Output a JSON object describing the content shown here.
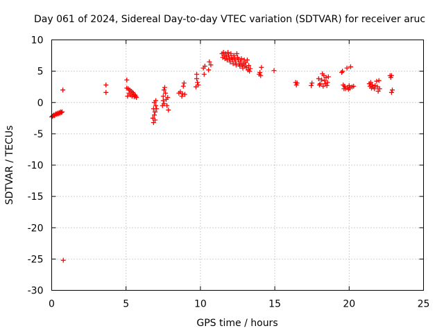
{
  "chart_data": {
    "type": "scatter",
    "title": "Day 061 of 2024, Sidereal Day-to-day VTEC variation (SDTVAR) for receiver aruc",
    "xlabel": "GPS time / hours",
    "ylabel": "SDTVAR / TECUs",
    "xlim": [
      0,
      25
    ],
    "ylim": [
      -30,
      10
    ],
    "xticks": [
      0,
      5,
      10,
      15,
      20,
      25
    ],
    "yticks": [
      -30,
      -25,
      -20,
      -15,
      -10,
      -5,
      0,
      5,
      10
    ],
    "grid": true,
    "marker": "plus",
    "color": "#ff0000",
    "series": [
      {
        "name": "SDTVAR",
        "points": [
          [
            0.0,
            -2.3
          ],
          [
            0.05,
            -2.2
          ],
          [
            0.1,
            -2.1
          ],
          [
            0.15,
            -2.0
          ],
          [
            0.2,
            -2.1
          ],
          [
            0.25,
            -1.9
          ],
          [
            0.3,
            -1.8
          ],
          [
            0.35,
            -1.9
          ],
          [
            0.4,
            -1.7
          ],
          [
            0.45,
            -1.8
          ],
          [
            0.5,
            -1.6
          ],
          [
            0.55,
            -1.7
          ],
          [
            0.6,
            -1.5
          ],
          [
            0.65,
            -1.6
          ],
          [
            0.7,
            -1.5
          ],
          [
            0.75,
            2.0
          ],
          [
            0.78,
            -25.2
          ],
          [
            3.65,
            2.8
          ],
          [
            3.65,
            1.6
          ],
          [
            5.05,
            3.6
          ],
          [
            5.05,
            2.3
          ],
          [
            5.1,
            1.0
          ],
          [
            5.15,
            2.2
          ],
          [
            5.2,
            1.5
          ],
          [
            5.25,
            2.0
          ],
          [
            5.3,
            1.2
          ],
          [
            5.35,
            1.8
          ],
          [
            5.4,
            1.0
          ],
          [
            5.45,
            1.6
          ],
          [
            5.5,
            1.4
          ],
          [
            5.55,
            0.9
          ],
          [
            5.6,
            1.2
          ],
          [
            5.65,
            1.0
          ],
          [
            5.7,
            0.8
          ],
          [
            6.8,
            -2.5
          ],
          [
            6.85,
            -3.2
          ],
          [
            6.85,
            -1.0
          ],
          [
            6.9,
            -2.0
          ],
          [
            6.9,
            0.0
          ],
          [
            6.95,
            -1.5
          ],
          [
            6.95,
            -2.8
          ],
          [
            7.0,
            -0.5
          ],
          [
            7.0,
            0.3
          ],
          [
            7.05,
            -1.0
          ],
          [
            7.45,
            -0.5
          ],
          [
            7.5,
            0.3
          ],
          [
            7.5,
            1.0
          ],
          [
            7.55,
            2.0
          ],
          [
            7.55,
            -0.2
          ],
          [
            7.6,
            2.4
          ],
          [
            7.65,
            1.5
          ],
          [
            7.7,
            0.5
          ],
          [
            7.75,
            -0.5
          ],
          [
            7.8,
            0.8
          ],
          [
            7.85,
            -1.2
          ],
          [
            8.55,
            1.5
          ],
          [
            8.65,
            1.7
          ],
          [
            8.75,
            1.0
          ],
          [
            8.8,
            1.4
          ],
          [
            8.85,
            2.6
          ],
          [
            8.9,
            3.1
          ],
          [
            8.95,
            1.3
          ],
          [
            9.7,
            2.5
          ],
          [
            9.75,
            3.8
          ],
          [
            9.75,
            4.5
          ],
          [
            9.8,
            3.2
          ],
          [
            9.85,
            2.8
          ],
          [
            10.2,
            5.5
          ],
          [
            10.25,
            4.5
          ],
          [
            10.3,
            5.8
          ],
          [
            10.55,
            5.2
          ],
          [
            10.6,
            6.5
          ],
          [
            10.7,
            6.0
          ],
          [
            11.45,
            7.8
          ],
          [
            11.5,
            7.2
          ],
          [
            11.55,
            8.0
          ],
          [
            11.6,
            7.5
          ],
          [
            11.65,
            7.0
          ],
          [
            11.7,
            7.8
          ],
          [
            11.75,
            7.3
          ],
          [
            11.8,
            6.8
          ],
          [
            11.85,
            8.0
          ],
          [
            11.9,
            7.5
          ],
          [
            11.95,
            7.0
          ],
          [
            12.0,
            6.5
          ],
          [
            12.05,
            7.8
          ],
          [
            12.1,
            7.2
          ],
          [
            12.15,
            6.8
          ],
          [
            12.2,
            6.2
          ],
          [
            12.25,
            7.5
          ],
          [
            12.3,
            7.0
          ],
          [
            12.35,
            6.5
          ],
          [
            12.4,
            6.0
          ],
          [
            12.45,
            7.8
          ],
          [
            12.5,
            7.2
          ],
          [
            12.55,
            6.8
          ],
          [
            12.6,
            6.2
          ],
          [
            12.65,
            5.8
          ],
          [
            12.7,
            6.5
          ],
          [
            12.75,
            7.0
          ],
          [
            12.8,
            6.0
          ],
          [
            12.85,
            5.5
          ],
          [
            12.9,
            6.2
          ],
          [
            12.95,
            6.8
          ],
          [
            13.0,
            5.8
          ],
          [
            13.05,
            6.4
          ],
          [
            13.1,
            5.6
          ],
          [
            13.15,
            6.8
          ],
          [
            13.2,
            5.2
          ],
          [
            13.25,
            5.9
          ],
          [
            13.3,
            5.0
          ],
          [
            13.35,
            5.4
          ],
          [
            13.95,
            4.5
          ],
          [
            14.0,
            4.8
          ],
          [
            14.05,
            4.3
          ],
          [
            14.1,
            5.6
          ],
          [
            14.95,
            5.1
          ],
          [
            16.4,
            3.2
          ],
          [
            16.45,
            2.8
          ],
          [
            16.5,
            3.1
          ],
          [
            17.45,
            2.7
          ],
          [
            17.5,
            3.1
          ],
          [
            17.95,
            3.8
          ],
          [
            18.0,
            2.8
          ],
          [
            18.05,
            3.0
          ],
          [
            18.15,
            3.6
          ],
          [
            18.2,
            4.6
          ],
          [
            18.25,
            2.6
          ],
          [
            18.3,
            4.3
          ],
          [
            18.35,
            3.5
          ],
          [
            18.4,
            3.0
          ],
          [
            18.45,
            4.0
          ],
          [
            18.5,
            2.7
          ],
          [
            18.55,
            3.2
          ],
          [
            18.6,
            4.1
          ],
          [
            19.5,
            4.8
          ],
          [
            19.55,
            5.0
          ],
          [
            19.6,
            2.8
          ],
          [
            19.65,
            2.2
          ],
          [
            19.7,
            2.6
          ],
          [
            19.75,
            2.2
          ],
          [
            19.85,
            5.5
          ],
          [
            19.9,
            2.4
          ],
          [
            19.95,
            2.1
          ],
          [
            20.0,
            2.7
          ],
          [
            20.05,
            2.3
          ],
          [
            20.1,
            5.7
          ],
          [
            20.2,
            2.5
          ],
          [
            20.3,
            2.6
          ],
          [
            21.35,
            3.0
          ],
          [
            21.4,
            2.6
          ],
          [
            21.45,
            3.2
          ],
          [
            21.5,
            2.3
          ],
          [
            21.55,
            2.8
          ],
          [
            21.6,
            2.5
          ],
          [
            21.7,
            2.2
          ],
          [
            21.75,
            2.7
          ],
          [
            21.85,
            3.4
          ],
          [
            21.9,
            2.5
          ],
          [
            21.95,
            1.8
          ],
          [
            22.0,
            3.5
          ],
          [
            22.05,
            2.2
          ],
          [
            22.75,
            4.3
          ],
          [
            22.8,
            4.0
          ],
          [
            22.85,
            4.3
          ],
          [
            22.85,
            1.6
          ],
          [
            22.9,
            2.0
          ]
        ]
      }
    ]
  }
}
